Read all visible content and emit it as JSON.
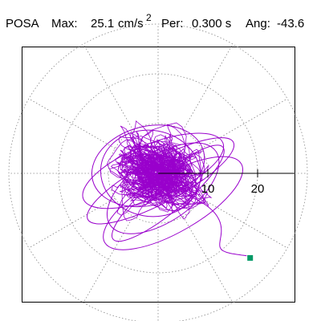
{
  "header": {
    "station": "POSA",
    "max_label": "Max:",
    "max_value": "25.1",
    "max_unit": "cm/s",
    "max_exp": "2",
    "per_label": "Per:",
    "per_value": "0.300 s",
    "ang_label": "Ang:",
    "ang_value": "-43.6"
  },
  "chart_data": {
    "type": "polar particle-motion (orbit) plot",
    "unit": "cm/s²",
    "max_amplitude": 25.1,
    "period_s": 0.3,
    "angle_deg": -43.6,
    "radial_rings": [
      10,
      20,
      30
    ],
    "radial_tick_labels": [
      "10",
      "20"
    ],
    "angular_spokes_deg": [
      0,
      30,
      60,
      90,
      120,
      150,
      180,
      210,
      240,
      270,
      300,
      330
    ],
    "grid": "dotted polar",
    "trace_color": "#9900cc",
    "end_marker": {
      "shape": "square",
      "color": "#009966",
      "x": 18.5,
      "y": -17.0
    },
    "trace_ellipses": [
      {
        "a": 23.0,
        "b": 6.0,
        "rot": -28,
        "cx": 0.5,
        "cy": -1.5
      },
      {
        "a": 21.0,
        "b": 7.5,
        "rot": -22,
        "cx": -1.0,
        "cy": 0.5
      },
      {
        "a": 18.0,
        "b": 9.0,
        "rot": -35,
        "cx": 1.0,
        "cy": -3.0
      },
      {
        "a": 16.0,
        "b": 11.0,
        "rot": -15,
        "cx": -2.0,
        "cy": 1.5
      },
      {
        "a": 20.0,
        "b": 5.0,
        "rot": -40,
        "cx": 2.0,
        "cy": -4.0
      },
      {
        "a": 14.0,
        "b": 12.0,
        "rot": 10,
        "cx": -1.5,
        "cy": 0.0
      },
      {
        "a": 22.0,
        "b": 8.0,
        "rot": -30,
        "cx": 3.0,
        "cy": -6.0
      }
    ]
  }
}
